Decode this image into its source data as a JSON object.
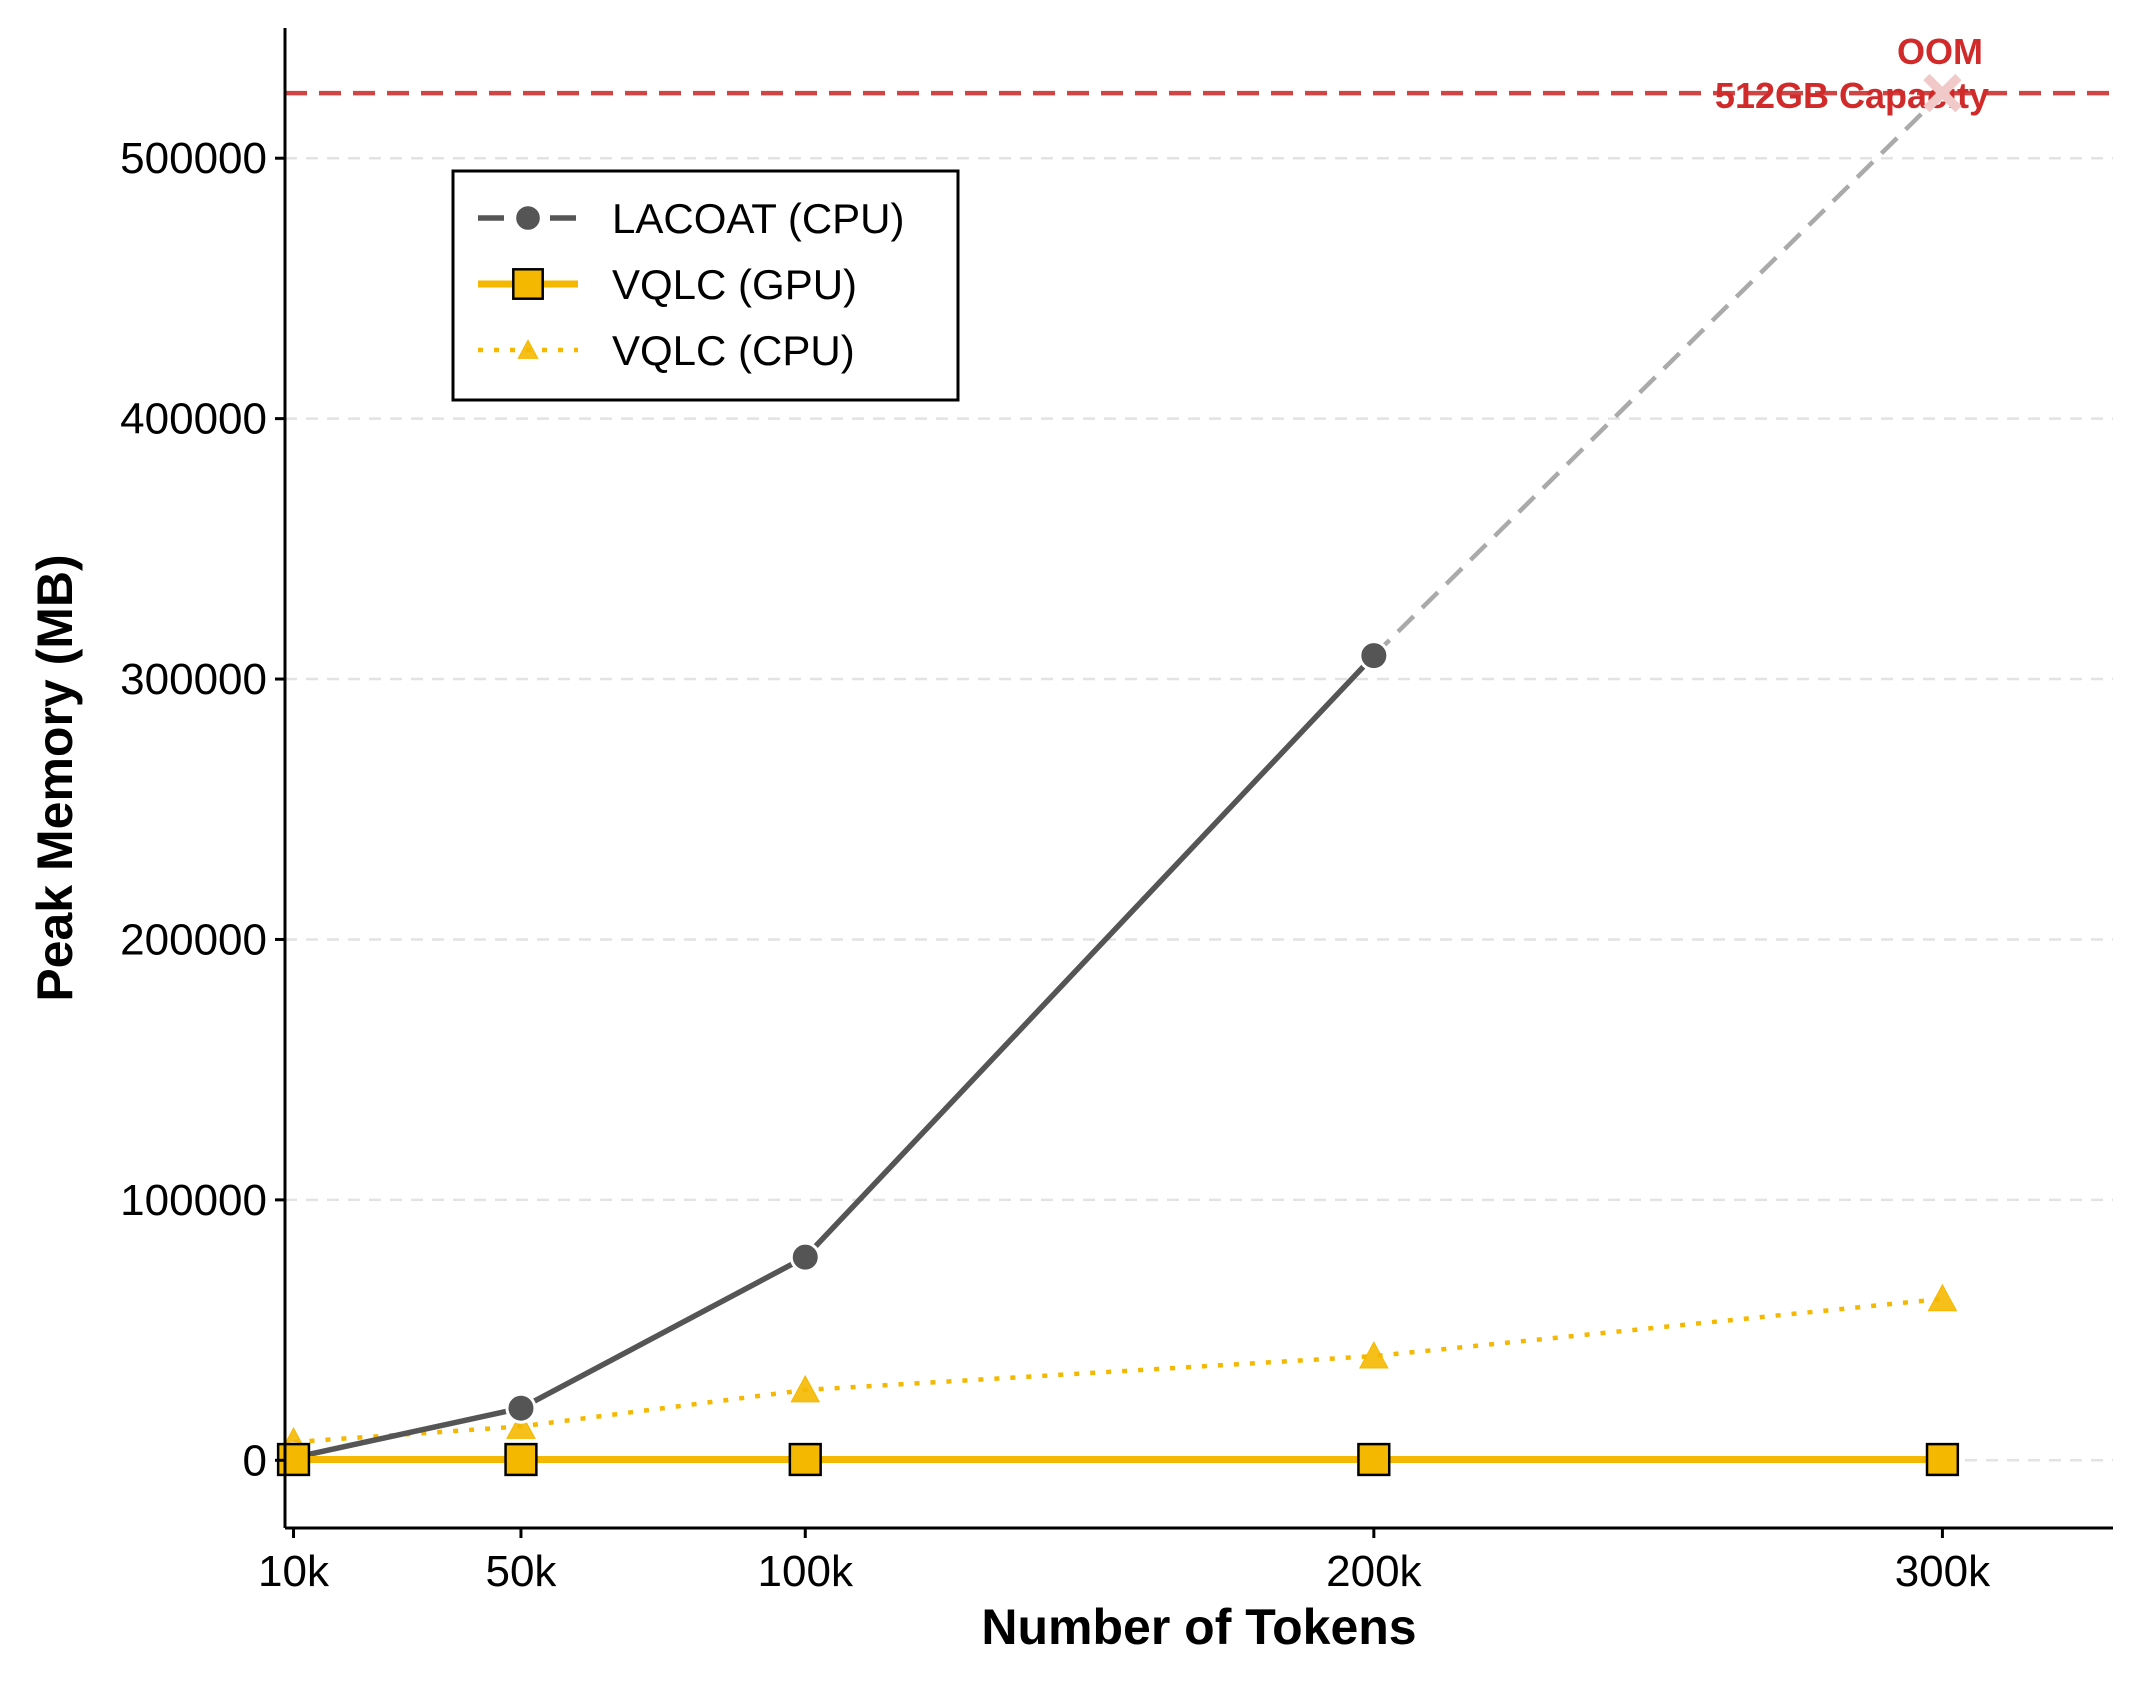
{
  "chart_data": {
    "type": "line",
    "xlabel": "Number of Tokens",
    "ylabel": "Peak Memory (MB)",
    "x": [
      10000,
      50000,
      100000,
      200000,
      300000
    ],
    "x_tick_labels": [
      "10k",
      "50k",
      "100k",
      "200k",
      "300k"
    ],
    "xlim": [
      8500,
      330000
    ],
    "ylim": [
      -26000,
      550000
    ],
    "y_ticks": [
      0,
      100000,
      200000,
      300000,
      400000,
      500000
    ],
    "y_tick_labels": [
      "0",
      "100000",
      "200000",
      "300000",
      "400000",
      "500000"
    ],
    "grid": "horizontal dashed",
    "legend": "upper-left",
    "series": [
      {
        "name": "LACOAT (CPU)",
        "color": "#555555",
        "marker": "circle",
        "linestyle": "solid",
        "values": [
          1000,
          20000,
          78000,
          309000,
          null
        ],
        "extrapolated": {
          "x": [
            200000,
            300000
          ],
          "values": [
            309000,
            525000
          ],
          "color": "#aaaaaa",
          "linestyle": "dashed"
        }
      },
      {
        "name": "VQLC (GPU)",
        "color": "#f5b800",
        "marker": "square",
        "linestyle": "solid",
        "values": [
          300,
          300,
          300,
          300,
          300
        ]
      },
      {
        "name": "VQLC (CPU)",
        "color": "#f5b800",
        "marker": "triangle",
        "linestyle": "dotted",
        "values": [
          7000,
          13000,
          27000,
          40000,
          62000
        ]
      }
    ],
    "reference_line": {
      "value": 525000,
      "color": "#d04444",
      "linestyle": "dashed"
    },
    "annotations": {
      "oom_label": "OOM",
      "capacity_label": "512GB Capacity",
      "color": "#d02a2a",
      "oom_marker": {
        "x": 300000,
        "y": 525000
      }
    }
  }
}
